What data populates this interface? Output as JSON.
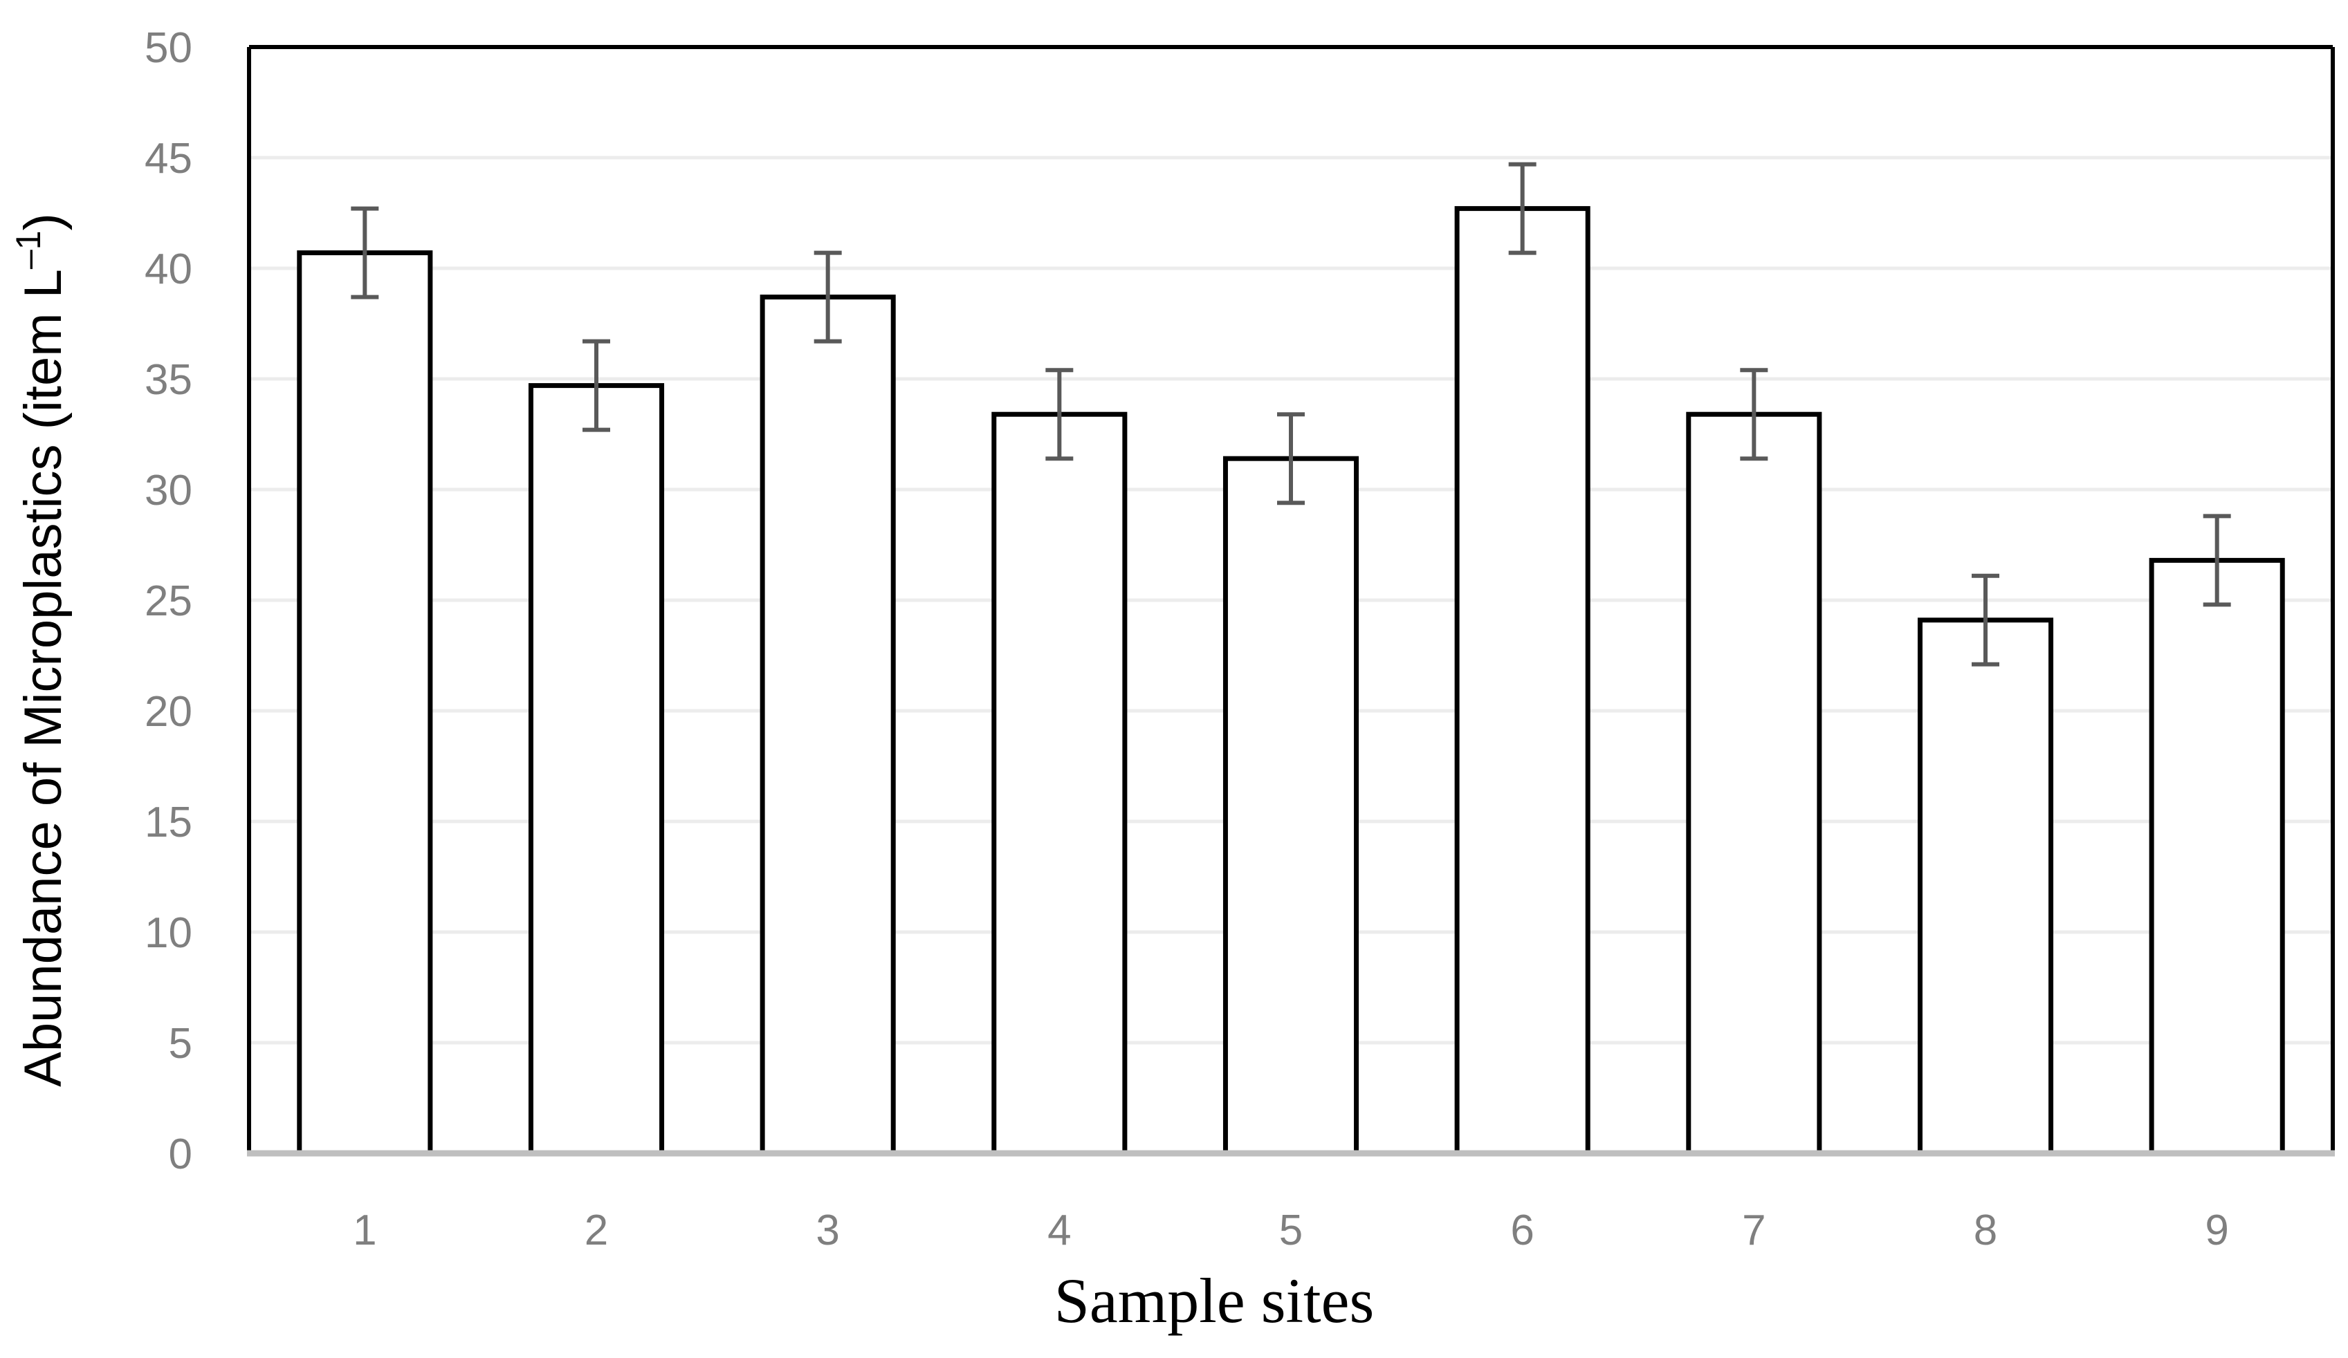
{
  "chart_data": {
    "type": "bar",
    "categories": [
      "1",
      "2",
      "3",
      "4",
      "5",
      "6",
      "7",
      "8",
      "9"
    ],
    "values": [
      40.7,
      34.7,
      38.7,
      33.4,
      31.4,
      42.7,
      33.4,
      24.1,
      26.8
    ],
    "errors": [
      2.0,
      2.0,
      2.0,
      2.0,
      2.0,
      2.0,
      2.0,
      2.0,
      2.0
    ],
    "xlabel": "Sample sites",
    "ylabel_main": "Abundance of Microplastics  (item L",
    "ylabel_sup": "–1",
    "ylabel_close": ")",
    "ylim": [
      0,
      50
    ],
    "yticks": [
      "0",
      "5",
      "10",
      "15",
      "20",
      "25",
      "30",
      "35",
      "40",
      "45",
      "50"
    ],
    "grid": true,
    "legend": "none",
    "colors": {
      "bar_fill": "#ffffff",
      "bar_stroke": "#000000",
      "error_bar": "#595959",
      "grid": "#ececec",
      "tick_text": "#7f7f7f",
      "axis_baseline": "#bfbfbf"
    }
  }
}
